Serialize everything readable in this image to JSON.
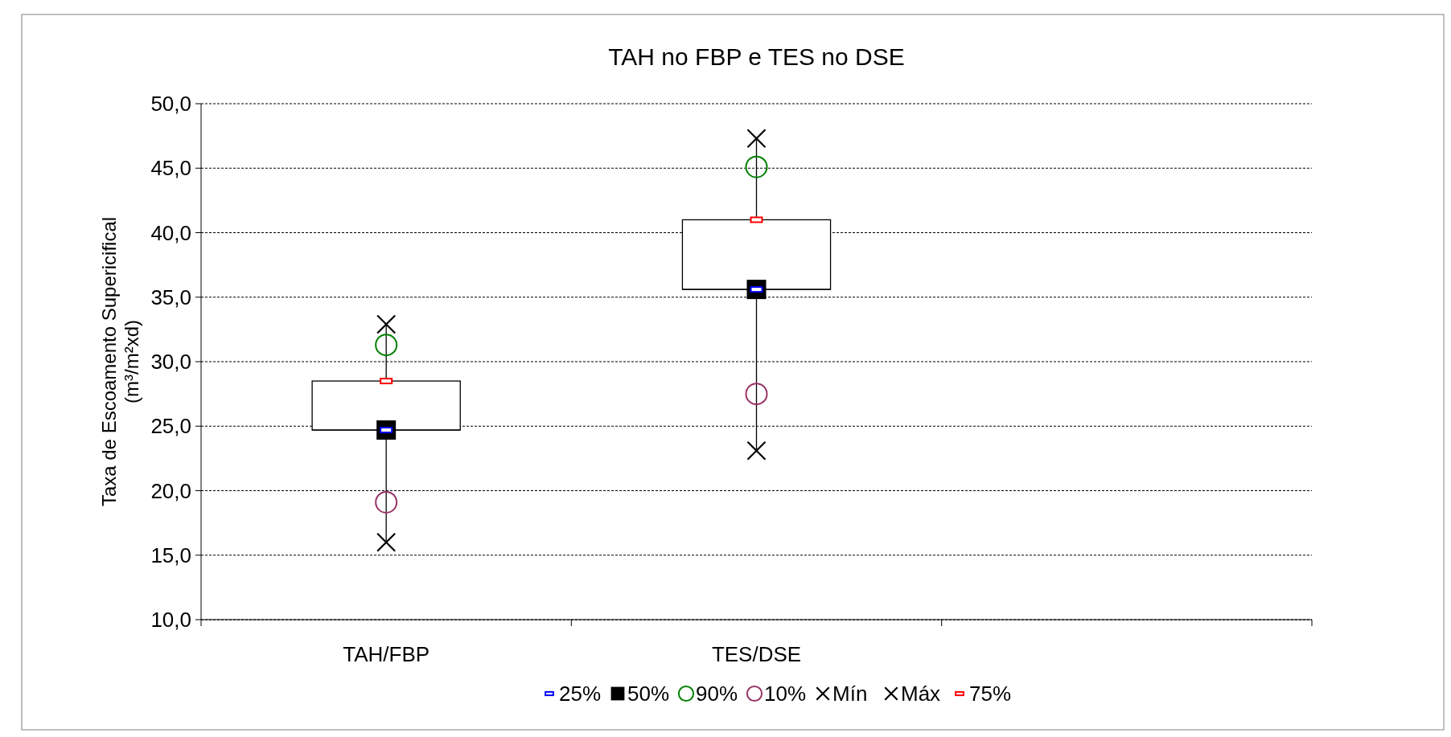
{
  "chart_data": {
    "type": "box",
    "title": "TAH no FBP e TES no DSE",
    "ylabel": "Taxa de Escoamento Supericifical\n(m³/m²xd)",
    "categories": [
      "TAH/FBP",
      "TES/DSE",
      null
    ],
    "boxes": [
      {
        "low": 16.0,
        "q1": 24.7,
        "median": 24.7,
        "q3": 28.5,
        "high": 32.9
      },
      {
        "low": 23.1,
        "q1": 35.6,
        "median": 35.6,
        "q3": 41.0,
        "high": 47.3
      },
      null
    ],
    "series": [
      {
        "name": "25%",
        "type": "scatter",
        "color": "#0000ff",
        "x": [
          "TAH/FBP",
          "TES/DSE"
        ],
        "values": [
          24.7,
          35.6
        ]
      },
      {
        "name": "50%",
        "type": "scatter",
        "marker": "square",
        "color": "#000000",
        "x": [
          "TAH/FBP",
          "TES/DSE"
        ],
        "values": [
          24.7,
          35.6
        ]
      },
      {
        "name": "90%",
        "type": "scatter",
        "marker": "circle",
        "color": "#008000",
        "x": [
          "TAH/FBP",
          "TES/DSE"
        ],
        "values": [
          31.3,
          45.1
        ]
      },
      {
        "name": "10%",
        "type": "scatter",
        "marker": "circle",
        "color": "#993366",
        "x": [
          "TAH/FBP",
          "TES/DSE"
        ],
        "values": [
          19.1,
          27.5
        ]
      },
      {
        "name": "Mín",
        "type": "scatter",
        "marker": "cross",
        "color": "#000000",
        "x": [
          "TAH/FBP",
          "TES/DSE"
        ],
        "values": [
          16.0,
          23.1
        ]
      },
      {
        "name": "Máx",
        "type": "scatter",
        "marker": "cross",
        "color": "#000000",
        "x": [
          "TAH/FBP",
          "TES/DSE"
        ],
        "values": [
          32.9,
          47.3
        ]
      },
      {
        "name": "75%",
        "type": "scatter",
        "color": "#ff0000",
        "x": [
          "TAH/FBP",
          "TES/DSE"
        ],
        "values": [
          28.5,
          41.0
        ]
      }
    ],
    "ylim": [
      10,
      50
    ],
    "yticks": [
      {
        "value": 10,
        "label": "10,0"
      },
      {
        "value": 15,
        "label": "15,0"
      },
      {
        "value": 20,
        "label": "20,0"
      },
      {
        "value": 25,
        "label": "25,0"
      },
      {
        "value": 30,
        "label": "30,0"
      },
      {
        "value": 35,
        "label": "35,0"
      },
      {
        "value": 40,
        "label": "40,0"
      },
      {
        "value": 45,
        "label": "45,0"
      },
      {
        "value": 50,
        "label": "50,0"
      }
    ],
    "grid": "y",
    "legend": "bottom"
  }
}
